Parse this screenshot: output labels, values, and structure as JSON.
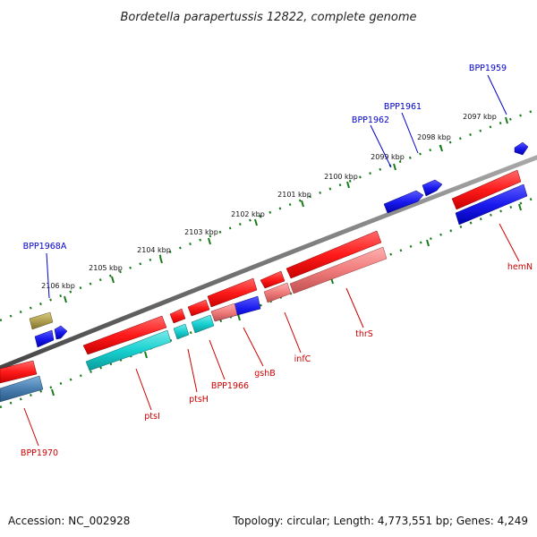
{
  "title": "Bordetella parapertussis 12822, complete genome",
  "footer": {
    "accession": "Accession: NC_002928",
    "summary": "Topology: circular; Length: 4,773,551 bp; Genes: 4,249"
  },
  "ruler": {
    "unit": "kbp",
    "labels": [
      "2097 kbp",
      "2098 kbp",
      "2099 kbp",
      "2100 kbp",
      "2101 kbp",
      "2102 kbp",
      "2103 kbp",
      "2104 kbp",
      "2105 kbp",
      "2106 kbp"
    ]
  },
  "genes": {
    "top": [
      {
        "name": "BPP1959"
      },
      {
        "name": "BPP1961"
      },
      {
        "name": "BPP1962"
      },
      {
        "name": "BPP1968A"
      }
    ],
    "bottom": [
      {
        "name": "hemN"
      },
      {
        "name": "thrS"
      },
      {
        "name": "infC"
      },
      {
        "name": "gshB"
      },
      {
        "name": "BPP1966"
      },
      {
        "name": "ptsH"
      },
      {
        "name": "ptsI"
      },
      {
        "name": "BPP1970"
      }
    ]
  },
  "colors": {
    "forward_label": "#0000cc",
    "reverse_label": "#cc0000",
    "red": "#ff1a1a",
    "blue": "#1a1aee",
    "cyan": "#18d0d0",
    "pink": "#f07b7b",
    "olive": "#b0a050",
    "steel": "#4a7fb0",
    "backbone": "#777777",
    "ruler": "#1a7a1a"
  }
}
